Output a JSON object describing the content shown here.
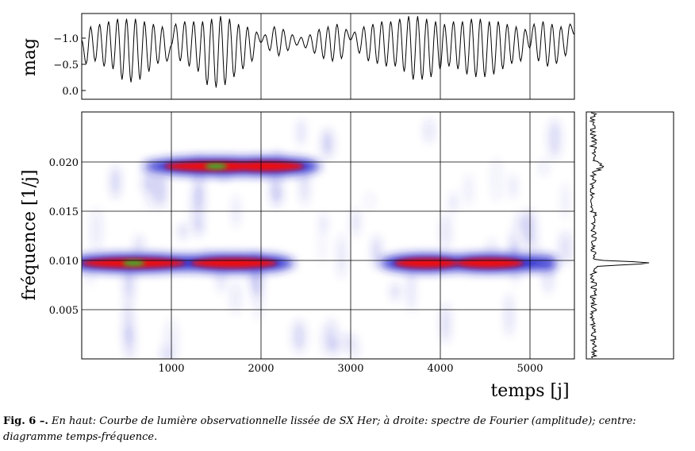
{
  "figure": {
    "top_panel": {
      "ylabel": "mag",
      "ytick_labels": [
        "−1.0",
        "−0.5",
        "0.0"
      ]
    },
    "main_panel": {
      "ylabel": "fréquence [1/j]",
      "xlabel": "temps [j]",
      "ytick_labels": [
        "0.020",
        "0.015",
        "0.010",
        "0.005"
      ],
      "xtick_labels": [
        "1000",
        "2000",
        "3000",
        "4000",
        "5000"
      ]
    },
    "colors": {
      "low": "#2222cc",
      "mid": "#ee1111",
      "high": "#33bb33",
      "line": "#000000"
    }
  },
  "caption": {
    "lead": "Fig. 6 –.",
    "body": " En haut: Courbe de lumière observationnelle lissée de SX Her; à droite: spectre de Fourier (amplitude); centre: diagramme temps-fréquence."
  },
  "chart_data": [
    {
      "type": "line",
      "xlabel": "",
      "ylabel": "mag",
      "xlim": [
        0,
        5500
      ],
      "ylim": [
        0.17,
        -1.45
      ],
      "yticks": [
        -1.0,
        -0.5,
        0.0
      ],
      "x": [
        0,
        50,
        100,
        150,
        200,
        250,
        300,
        350,
        400,
        450,
        500,
        550,
        600,
        650,
        700,
        750,
        800,
        850,
        900,
        950,
        1000,
        1050,
        1100,
        1150,
        1200,
        1250,
        1300,
        1350,
        1400,
        1450,
        1500,
        1550,
        1600,
        1650,
        1700,
        1750,
        1800,
        1850,
        1900,
        1950,
        2000,
        2050,
        2100,
        2150,
        2200,
        2250,
        2300,
        2350,
        2400,
        2450,
        2500,
        2550,
        2600,
        2650,
        2700,
        2750,
        2800,
        2850,
        2900,
        2950,
        3000,
        3050,
        3100,
        3150,
        3200,
        3250,
        3300,
        3350,
        3400,
        3450,
        3500,
        3550,
        3600,
        3650,
        3700,
        3750,
        3800,
        3850,
        3900,
        3950,
        4000,
        4050,
        4100,
        4150,
        4200,
        4250,
        4300,
        4350,
        4400,
        4450,
        4500,
        4550,
        4600,
        4650,
        4700,
        4750,
        4800,
        4850,
        4900,
        4950,
        5000,
        5050,
        5100,
        5150,
        5200,
        5250,
        5300,
        5350,
        5400,
        5450,
        5500
      ],
      "y": [
        -0.95,
        -0.5,
        -1.2,
        -0.55,
        -1.25,
        -0.45,
        -1.3,
        -0.4,
        -1.35,
        -0.2,
        -1.35,
        -0.15,
        -1.35,
        -0.2,
        -1.3,
        -0.35,
        -1.25,
        -0.5,
        -1.2,
        -0.55,
        -0.85,
        -1.25,
        -0.55,
        -1.3,
        -0.45,
        -1.3,
        -0.35,
        -1.3,
        -0.1,
        -1.35,
        -0.05,
        -1.4,
        -0.1,
        -1.35,
        -0.25,
        -1.25,
        -0.4,
        -1.2,
        -0.55,
        -1.1,
        -0.9,
        -1.05,
        -0.75,
        -1.2,
        -0.65,
        -1.15,
        -0.75,
        -1.05,
        -0.85,
        -1.0,
        -0.8,
        -1.05,
        -0.7,
        -1.15,
        -0.6,
        -1.2,
        -0.55,
        -1.25,
        -0.6,
        -1.15,
        -0.95,
        -1.1,
        -0.7,
        -1.2,
        -0.55,
        -1.25,
        -0.5,
        -1.3,
        -0.45,
        -1.3,
        -0.45,
        -1.35,
        -0.35,
        -1.4,
        -0.2,
        -1.4,
        -0.2,
        -1.35,
        -0.25,
        -1.3,
        -0.4,
        -1.25,
        -0.45,
        -1.3,
        -0.4,
        -1.3,
        -0.3,
        -1.35,
        -0.25,
        -1.35,
        -0.25,
        -1.3,
        -0.3,
        -1.3,
        -0.4,
        -1.25,
        -0.5,
        -1.2,
        -0.55,
        -1.15,
        -0.8,
        -1.25,
        -0.55,
        -1.3,
        -0.45,
        -1.25,
        -0.5,
        -1.2,
        -0.65,
        -1.25,
        -1.05
      ]
    },
    {
      "type": "heatmap",
      "xlabel": "temps [j]",
      "ylabel": "fréquence [1/j]",
      "xlim": [
        0,
        5500
      ],
      "ylim": [
        0,
        0.025
      ],
      "xticks": [
        1000,
        2000,
        3000,
        4000,
        5000
      ],
      "yticks": [
        0.005,
        0.01,
        0.015,
        0.02
      ],
      "grid": true,
      "ridges": [
        {
          "x_start": 100,
          "x_end": 2250,
          "freq": 0.0097,
          "peaks": [
            {
              "x": 580,
              "level": 1.0
            },
            {
              "x": 1700,
              "level": 0.8
            }
          ]
        },
        {
          "x_start": 3500,
          "x_end": 5300,
          "freq": 0.0097,
          "peaks": [
            {
              "x": 3850,
              "level": 0.55
            },
            {
              "x": 4550,
              "level": 0.6
            }
          ]
        },
        {
          "x_start": 1100,
          "x_end": 2300,
          "freq": 0.0195,
          "peaks": [
            {
              "x": 1500,
              "level": 1.0
            },
            {
              "x": 2050,
              "level": 0.7
            }
          ]
        }
      ]
    },
    {
      "type": "line",
      "xlabel": "",
      "ylabel": "",
      "ylim": [
        0,
        0.025
      ],
      "peak_frequency": 0.0097,
      "secondary_peak_frequency": 0.0195
    }
  ]
}
